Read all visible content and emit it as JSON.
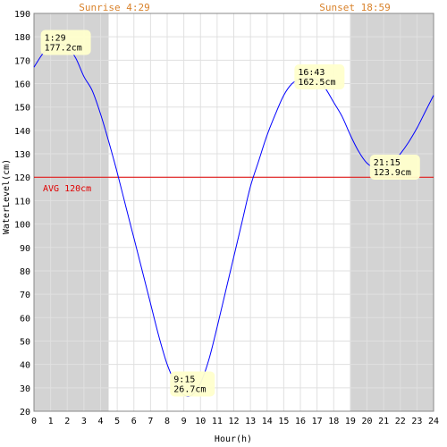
{
  "chart_data": {
    "type": "line",
    "xlabel": "Hour(h)",
    "ylabel": "WaterLevel(cm)",
    "xlim": [
      0,
      24
    ],
    "ylim": [
      20,
      190
    ],
    "x_ticks": [
      0,
      1,
      2,
      3,
      4,
      5,
      6,
      7,
      8,
      9,
      10,
      11,
      12,
      13,
      14,
      15,
      16,
      17,
      18,
      19,
      20,
      21,
      22,
      23,
      24
    ],
    "y_ticks": [
      20,
      30,
      40,
      50,
      60,
      70,
      80,
      90,
      100,
      110,
      120,
      130,
      140,
      150,
      160,
      170,
      180,
      190
    ],
    "grid": true,
    "sunrise": {
      "label": "Sunrise 4:29",
      "hour": 4.483
    },
    "sunset": {
      "label": "Sunset 18:59",
      "hour": 18.983
    },
    "night_color": "#d3d3d3",
    "line_color": "#0000ff",
    "avg": {
      "label": "AVG 120cm",
      "value": 120,
      "color": "#e00000"
    },
    "annotation_bg": "#ffffcc",
    "extrema": [
      {
        "time": "1:29",
        "level": "177.2cm",
        "hour": 1.483,
        "value": 177.2
      },
      {
        "time": "9:15",
        "level": "26.7cm",
        "hour": 9.25,
        "value": 26.7
      },
      {
        "time": "16:43",
        "level": "162.5cm",
        "hour": 16.717,
        "value": 162.5
      },
      {
        "time": "21:15",
        "level": "123.9cm",
        "hour": 21.25,
        "value": 123.9
      }
    ],
    "series": [
      {
        "x": [
          0,
          0.5,
          1,
          1.5,
          2,
          2.5,
          3,
          3.5,
          4,
          4.5,
          5,
          5.5,
          6,
          6.5,
          7,
          7.5,
          8,
          8.5,
          9,
          9.5,
          10,
          10.5,
          11,
          11.5,
          12,
          12.5,
          13,
          13.5,
          14,
          14.5,
          15,
          15.5,
          16,
          16.5,
          17,
          17.5,
          18,
          18.5,
          19,
          19.5,
          20,
          20.5,
          21,
          21.5,
          22,
          22.5,
          23,
          23.5,
          24
        ],
        "values": [
          167,
          172.5,
          176.2,
          177.2,
          175.5,
          171,
          163,
          157,
          147,
          135,
          122,
          108,
          94,
          80,
          66,
          52,
          40,
          32,
          27,
          27,
          32,
          42,
          56,
          71,
          86,
          101,
          116,
          127,
          138,
          147,
          155,
          160,
          162,
          162.5,
          161.5,
          158,
          152,
          146,
          138,
          131,
          126,
          124,
          124,
          126,
          130,
          135,
          141,
          148,
          155
        ]
      }
    ]
  }
}
